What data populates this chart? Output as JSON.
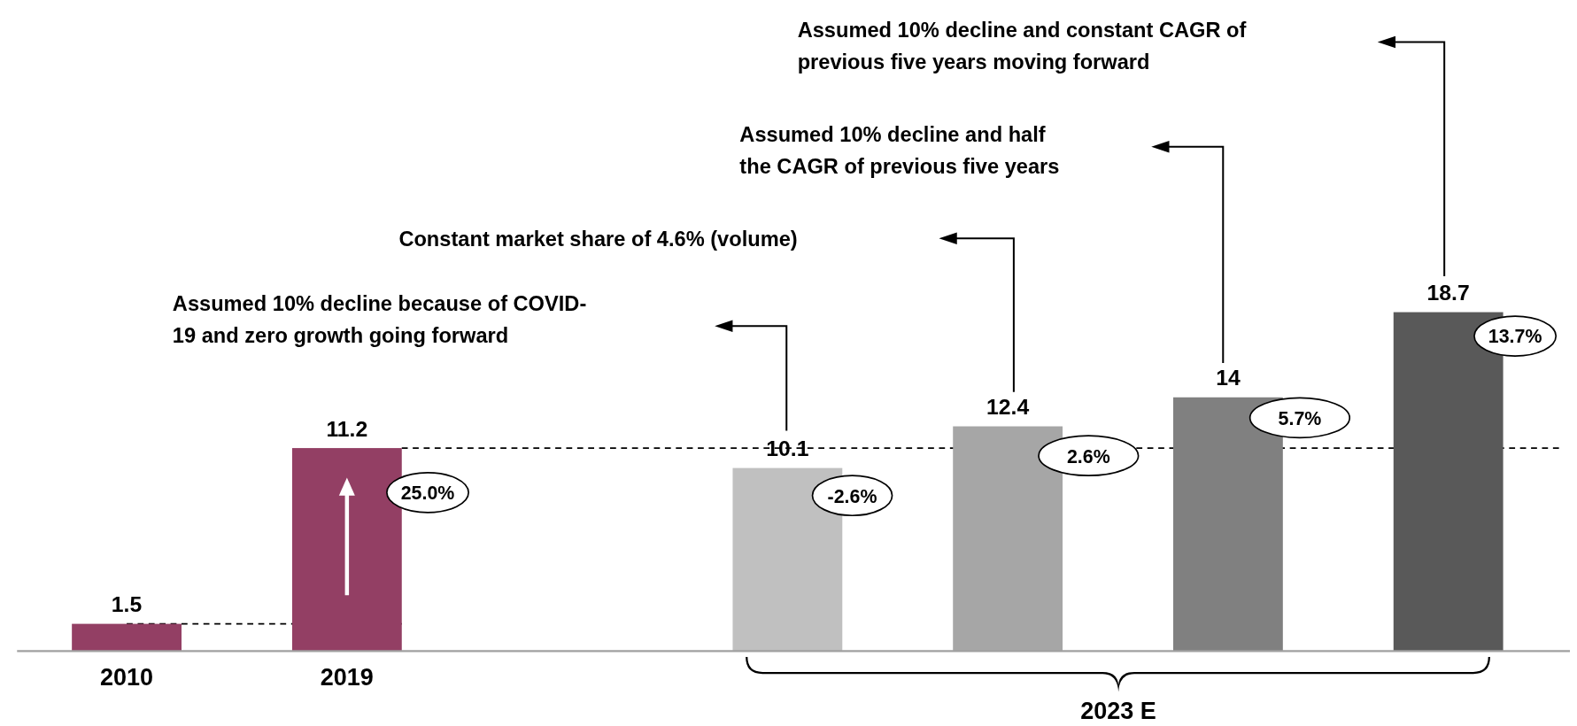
{
  "chart_data": {
    "type": "bar",
    "categories": [
      "2010",
      "2019",
      null,
      null,
      null,
      null,
      null
    ],
    "values": [
      1.5,
      11.2,
      null,
      10.1,
      12.4,
      14,
      18.7
    ],
    "colors": [
      "#933f64",
      "#933f64",
      null,
      "#c0c0c0",
      "#a6a6a6",
      "#808080",
      "#595959"
    ],
    "tick_labels": "x",
    "data_labels": true,
    "ref_lines": [
      {
        "axis": "y",
        "value": 1.5,
        "line_style": "dashed",
        "color": "#000000"
      },
      {
        "axis": "y",
        "value": 11.2,
        "line_style": "dashed",
        "color": "#000000"
      }
    ],
    "annotations": [
      "Assumed 10% decline because of COVID-\n19  and zero growth going forward",
      "Constant market share of 4.6% (volume)",
      "Assumed 10% decline and half\nthe CAGR of previous five years",
      "Assumed 10% decline and constant CAGR of\nprevious five years moving forward",
      "25.0%",
      "-2.6%",
      "2.6%",
      "5.7%",
      "13.7%",
      "2023 E"
    ]
  }
}
